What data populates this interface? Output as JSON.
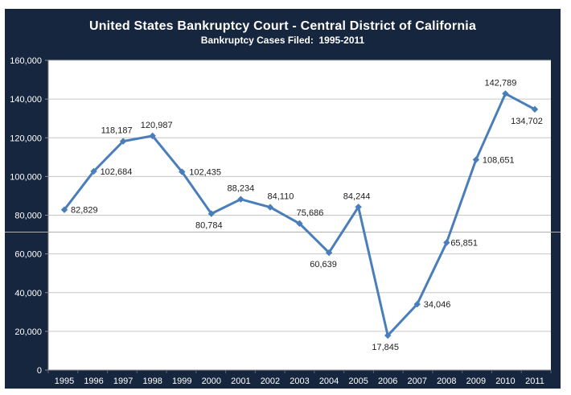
{
  "header": {
    "title": "United States Bankruptcy Court - Central District of California",
    "subtitle": "Bankruptcy Cases Filed:  1995-2011"
  },
  "colors": {
    "panel_bg": "#16263E",
    "plot_bg": "#FFFFFF",
    "line": "#4A7EBB",
    "gridline": "#C6C6C6",
    "axis": "#8C8C8C",
    "tick": "#5A6575",
    "data_label_text": "#202020",
    "axis_text": "#FFFFFF",
    "title_text": "#FFFFFF",
    "seam": "#B0B0B0"
  },
  "chart_data": {
    "type": "line",
    "title": "United States Bankruptcy Court - Central District of California",
    "subtitle": "Bankruptcy Cases Filed:  1995-2011",
    "categories": [
      "1995",
      "1996",
      "1997",
      "1998",
      "1999",
      "2000",
      "2001",
      "2002",
      "2003",
      "2004",
      "2005",
      "2006",
      "2007",
      "2008",
      "2009",
      "2010",
      "2011"
    ],
    "series": [
      {
        "name": "Bankruptcy Cases Filed",
        "values": [
          82829,
          102684,
          118187,
          120987,
          102435,
          80784,
          88234,
          84110,
          75686,
          60639,
          84244,
          17845,
          34046,
          65851,
          108651,
          142789,
          134702
        ]
      }
    ],
    "point_labels": [
      "82,829",
      "102,684",
      "118,187",
      "120,987",
      "102,435",
      "80,784",
      "88,234",
      "84,110",
      "75,686",
      "60,639",
      "84,244",
      "17,845",
      "34,046",
      "65,851",
      "108,651",
      "142,789",
      "134,702"
    ],
    "label_placement": [
      "right",
      "right",
      "above",
      "above",
      "right",
      "below",
      "above",
      "above",
      "above",
      "below",
      "above",
      "below",
      "right",
      "right",
      "right",
      "above",
      "below"
    ],
    "label_dx": [
      0,
      0,
      -8,
      5,
      1,
      -3,
      0,
      13,
      13,
      -7,
      -2,
      -3,
      0,
      -3,
      0,
      -6,
      -10
    ],
    "xlabel": "",
    "ylabel": "",
    "ylim": [
      0,
      160000
    ],
    "ytick_interval": 20000,
    "ytick_labels": [
      "0",
      "20,000",
      "40,000",
      "60,000",
      "80,000",
      "100,000",
      "120,000",
      "140,000",
      "160,000"
    ],
    "grid": "horizontal",
    "legend": "none",
    "marker": "diamond"
  }
}
